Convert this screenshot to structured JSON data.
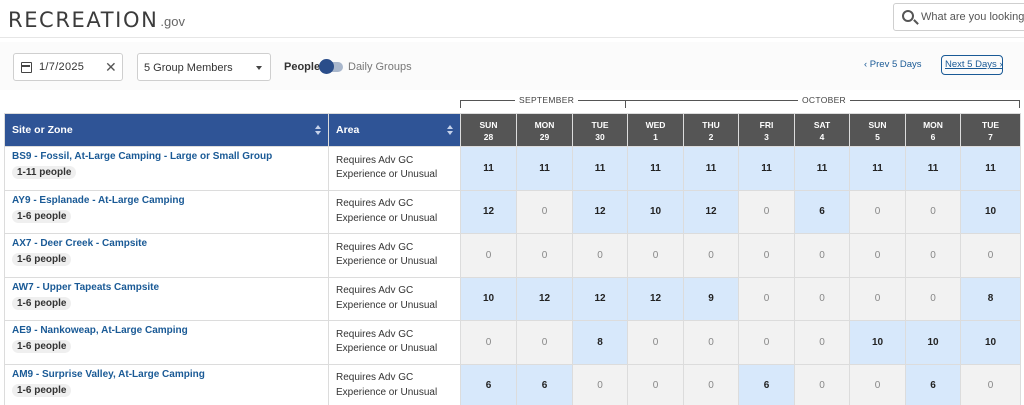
{
  "header": {
    "logo_text": "RECREATION",
    "logo_gov": ".gov",
    "search_placeholder": "What are you looking for"
  },
  "controls": {
    "date_value": "1/7/2025",
    "clear_glyph": "✕",
    "members_value": "5 Group Members",
    "toggle_left": "People",
    "toggle_right": "Daily Groups",
    "prev_label": "‹  Prev 5 Days",
    "next_label": "Next 5 Days  ›"
  },
  "months": [
    {
      "label": "SEPTEMBER"
    },
    {
      "label": "OCTOBER"
    }
  ],
  "columns": {
    "site": "Site or Zone",
    "area": "Area"
  },
  "days": [
    {
      "dow": "SUN",
      "date": "28"
    },
    {
      "dow": "MON",
      "date": "29"
    },
    {
      "dow": "TUE",
      "date": "30"
    },
    {
      "dow": "WED",
      "date": "1"
    },
    {
      "dow": "THU",
      "date": "2"
    },
    {
      "dow": "FRI",
      "date": "3"
    },
    {
      "dow": "SAT",
      "date": "4"
    },
    {
      "dow": "SUN",
      "date": "5"
    },
    {
      "dow": "MON",
      "date": "6"
    },
    {
      "dow": "TUE",
      "date": "7"
    }
  ],
  "rows": [
    {
      "name": "BS9 - Fossil, At-Large Camping - Large or Small Group",
      "people": "1-11 people",
      "area_line1": "Requires Adv GC",
      "area_line2": "Experience or Unusual",
      "values": [
        11,
        11,
        11,
        11,
        11,
        11,
        11,
        11,
        11,
        11
      ]
    },
    {
      "name": "AY9 - Esplanade - At-Large Camping",
      "people": "1-6 people",
      "area_line1": "Requires Adv GC",
      "area_line2": "Experience or Unusual",
      "values": [
        12,
        0,
        12,
        10,
        12,
        0,
        6,
        0,
        0,
        10
      ]
    },
    {
      "name": "AX7 - Deer Creek - Campsite",
      "people": "1-6 people",
      "area_line1": "Requires Adv GC",
      "area_line2": "Experience or Unusual",
      "values": [
        0,
        0,
        0,
        0,
        0,
        0,
        0,
        0,
        0,
        0
      ]
    },
    {
      "name": "AW7 - Upper Tapeats Campsite",
      "people": "1-6 people",
      "area_line1": "Requires Adv GC",
      "area_line2": "Experience or Unusual",
      "values": [
        10,
        12,
        12,
        12,
        9,
        0,
        0,
        0,
        0,
        8
      ]
    },
    {
      "name": "AE9 - Nankoweap, At-Large Camping",
      "people": "1-6 people",
      "area_line1": "Requires Adv GC",
      "area_line2": "Experience or Unusual",
      "values": [
        0,
        0,
        8,
        0,
        0,
        0,
        0,
        10,
        10,
        10
      ]
    },
    {
      "name": "AM9 - Surprise Valley, At-Large Camping",
      "people": "1-6 people",
      "area_line1": "Requires Adv GC",
      "area_line2": "Experience or Unusual",
      "values": [
        6,
        6,
        0,
        0,
        0,
        6,
        0,
        0,
        6,
        0
      ]
    }
  ],
  "colors": {
    "header_blue": "#2f5496",
    "day_header": "#555555",
    "available_cell": "#d7e8fb",
    "empty_cell": "#f2f2f2",
    "link_blue": "#1a5a96"
  }
}
